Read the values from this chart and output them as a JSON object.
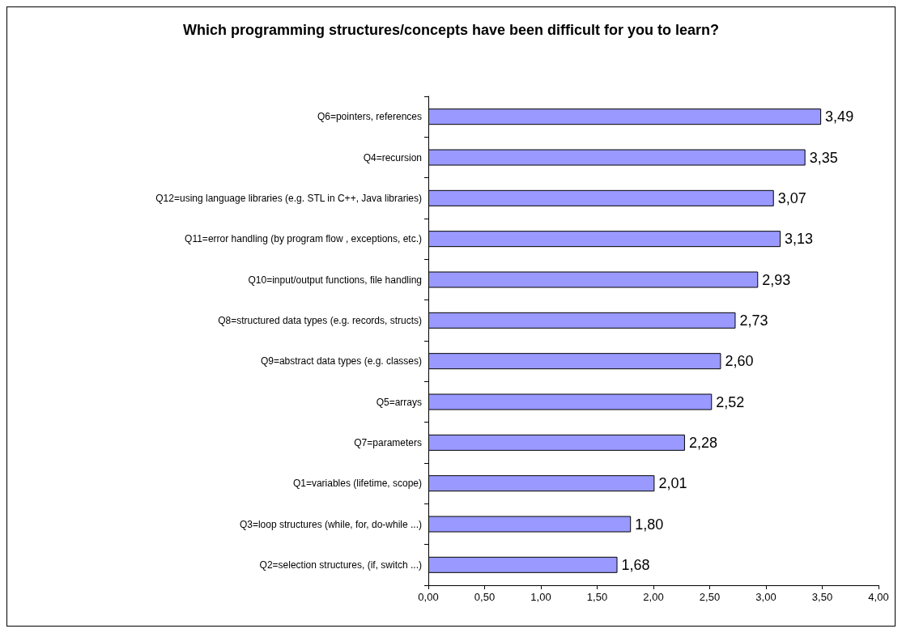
{
  "chart_data": {
    "type": "bar",
    "orientation": "horizontal",
    "title": "Which programming structures/concepts have been difficult for you to learn?",
    "categories": [
      "Q6=pointers, references",
      "Q4=recursion",
      "Q12=using language libraries (e.g. STL in C++, Java libraries)",
      "Q11=error handling (by program flow , exceptions, etc.)",
      "Q10=input/output functions, file handling",
      "Q8=structured data types (e.g. records, structs)",
      "Q9=abstract data types (e.g. classes)",
      "Q5=arrays",
      "Q7=parameters",
      "Q1=variables (lifetime, scope)",
      "Q3=loop structures (while, for, do-while ...)",
      "Q2=selection structures, (if, switch ...)"
    ],
    "values": [
      3.49,
      3.35,
      3.07,
      3.13,
      2.93,
      2.73,
      2.6,
      2.52,
      2.28,
      2.01,
      1.8,
      1.68
    ],
    "value_labels": [
      "3,49",
      "3,35",
      "3,07",
      "3,13",
      "2,93",
      "2,73",
      "2,60",
      "2,52",
      "2,28",
      "2,01",
      "1,80",
      "1,68"
    ],
    "color": "#9999ff",
    "xlim": [
      0,
      4
    ],
    "xticks": [
      {
        "value": 0,
        "label": "0,00"
      },
      {
        "value": 0.5,
        "label": "0,50"
      },
      {
        "value": 1,
        "label": "1,00"
      },
      {
        "value": 1.5,
        "label": "1,50"
      },
      {
        "value": 2,
        "label": "2,00"
      },
      {
        "value": 2.5,
        "label": "2,50"
      },
      {
        "value": 3,
        "label": "3,00"
      },
      {
        "value": 3.5,
        "label": "3,50"
      },
      {
        "value": 4,
        "label": "4,00"
      }
    ],
    "grid": false
  }
}
